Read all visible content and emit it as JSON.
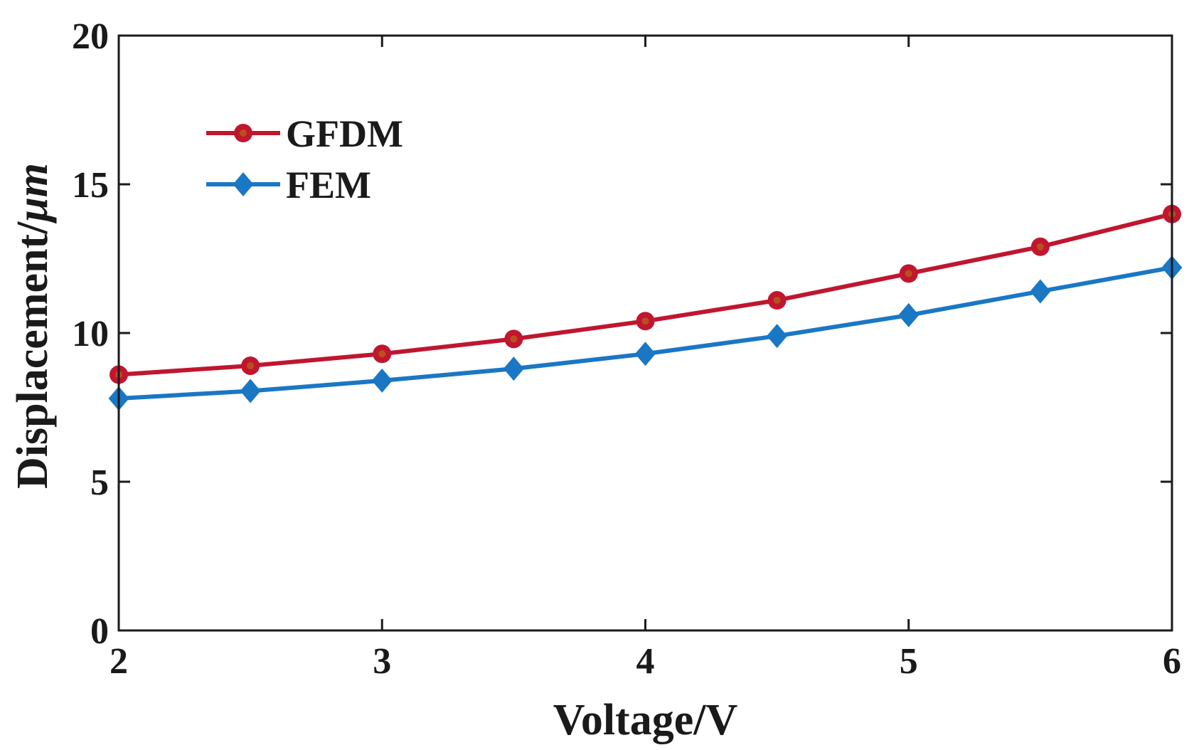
{
  "chart_data": {
    "type": "line",
    "title": "",
    "xlabel": "Voltage/V",
    "ylabel_text": "Displacement/",
    "ylabel_unit": "μm",
    "xlim": [
      2,
      6
    ],
    "ylim": [
      0,
      20
    ],
    "xticks": [
      2,
      3,
      4,
      5,
      6
    ],
    "yticks": [
      0,
      5,
      10,
      15,
      20
    ],
    "grid": false,
    "legend_position": "top-left",
    "x": [
      2,
      2.5,
      3,
      3.5,
      4,
      4.5,
      5,
      5.5,
      6
    ],
    "series": [
      {
        "name": "GFDM",
        "marker": "circle",
        "color": "#c0162f",
        "marker_center_color": "#b8501e",
        "values": [
          8.6,
          8.9,
          9.3,
          9.8,
          10.4,
          11.1,
          12.0,
          12.9,
          14.0
        ]
      },
      {
        "name": "FEM",
        "marker": "diamond",
        "color": "#1a77c4",
        "values": [
          7.8,
          8.05,
          8.4,
          8.8,
          9.3,
          9.9,
          10.6,
          11.4,
          12.2
        ]
      }
    ]
  }
}
